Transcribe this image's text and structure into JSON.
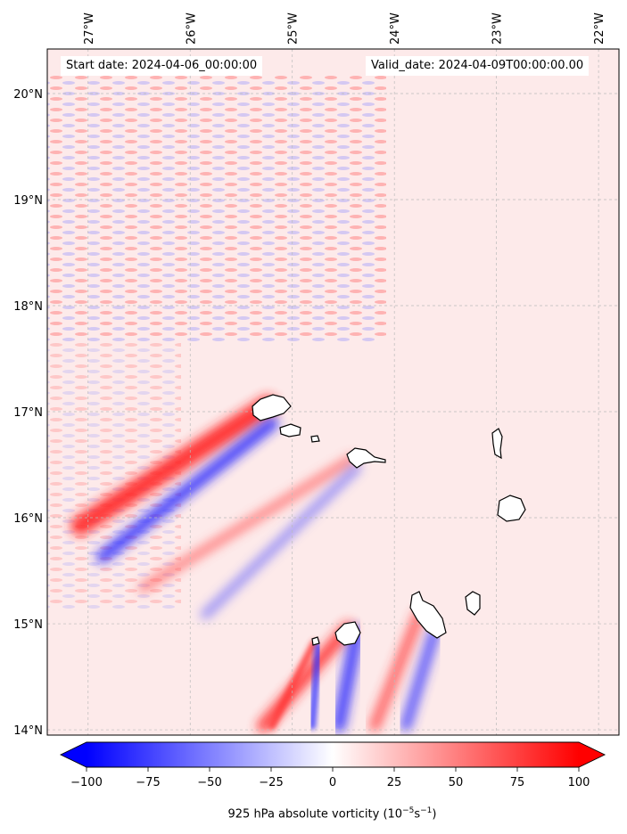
{
  "map": {
    "start_date": "Start date: 2024-04-06_00:00:00",
    "valid_date": "Valid_date: 2024-04-09T00:00:00.00",
    "lon_labels": [
      "27°W",
      "26°W",
      "25°W",
      "24°W",
      "23°W",
      "22°W"
    ],
    "lat_labels": [
      "20°N",
      "19°N",
      "18°N",
      "17°N",
      "16°N",
      "15°N",
      "14°N"
    ],
    "extent": {
      "lon_min": -27.4,
      "lon_max": -21.8,
      "lat_min": 13.95,
      "lat_max": 20.42
    },
    "islands": [
      {
        "name": "Santo Antão",
        "lon": -24.97,
        "lat": 16.88
      },
      {
        "name": "São Vicente",
        "lon": -25.26,
        "lat": 16.83
      },
      {
        "name": "Santa Luzia",
        "lon": -24.73,
        "lat": 16.77
      },
      {
        "name": "São Nicolau",
        "lon": -24.25,
        "lat": 16.61
      },
      {
        "name": "Sal",
        "lon": -22.94,
        "lat": 16.72
      },
      {
        "name": "Boa Vista",
        "lon": -22.82,
        "lat": 16.09
      },
      {
        "name": "Maio",
        "lon": -23.17,
        "lat": 15.22
      },
      {
        "name": "Santiago",
        "lon": -23.65,
        "lat": 15.09
      },
      {
        "name": "Fogo",
        "lon": -24.36,
        "lat": 14.93
      },
      {
        "name": "Brava",
        "lon": -24.71,
        "lat": 14.84
      }
    ],
    "colors": {
      "negative": "#0000ff",
      "zero": "#ffffff",
      "positive": "#ff0000",
      "coast": "#000000"
    }
  },
  "colorbar": {
    "ticks": [
      "−100",
      "−75",
      "−50",
      "−25",
      "0",
      "25",
      "50",
      "75",
      "100"
    ],
    "min": -100,
    "max": 100,
    "extend": "both",
    "label": "925 hPa absolute vorticity (10",
    "label_exp1": "−5",
    "label_mid": "s",
    "label_exp2": "−1",
    "label_end": ")"
  }
}
